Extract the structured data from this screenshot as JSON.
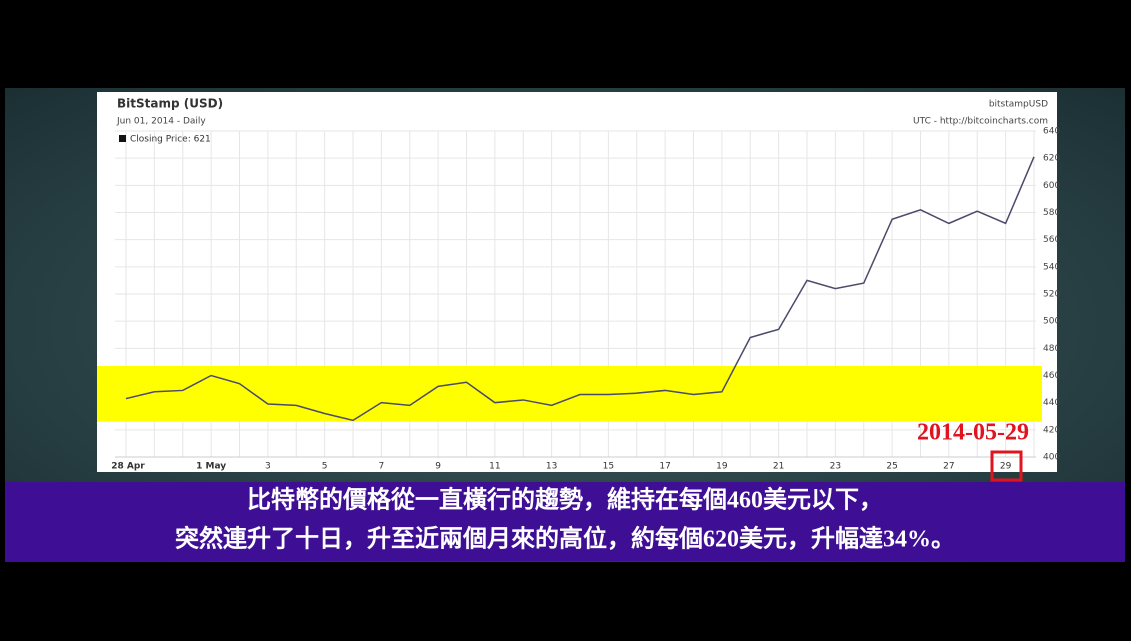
{
  "chart_data": {
    "type": "line",
    "title": "BitStamp (USD)",
    "subtitle": "Jun 01, 2014 - Daily",
    "source_name": "bitstampUSD",
    "source_note": "UTC - http://bitcoincharts.com",
    "annotation": "2014-05-29",
    "categories": [
      "28 Apr",
      null,
      null,
      "1 May",
      null,
      "3",
      null,
      "5",
      null,
      "7",
      null,
      "9",
      null,
      "11",
      null,
      "13",
      null,
      "15",
      null,
      "17",
      null,
      "19",
      null,
      "21",
      null,
      "23",
      null,
      "25",
      null,
      "27",
      null,
      "29",
      null
    ],
    "series": [
      {
        "name": "Closing Price: 621",
        "color": "#4a4a6a",
        "values": [
          443,
          448,
          449,
          460,
          454,
          439,
          438,
          432,
          427,
          440,
          438,
          452,
          455,
          440,
          442,
          438,
          446,
          446,
          447,
          449,
          446,
          448,
          488,
          494,
          530,
          524,
          528,
          575,
          582,
          572,
          581,
          572,
          621
        ]
      }
    ],
    "highlight_band": [
      426,
      467
    ],
    "highlight_color": "#ffff00",
    "ylim": [
      400,
      640
    ],
    "yticks": [
      400,
      420,
      440,
      460,
      480,
      500,
      520,
      540,
      560,
      580,
      600,
      620,
      640
    ],
    "grid": true
  },
  "caption": [
    "比特幣的價格從一直橫行的趨勢，維持在每個460美元以下，",
    "突然連升了十日，升至近兩個月來的高位，約每個620美元，升幅達34%。"
  ]
}
